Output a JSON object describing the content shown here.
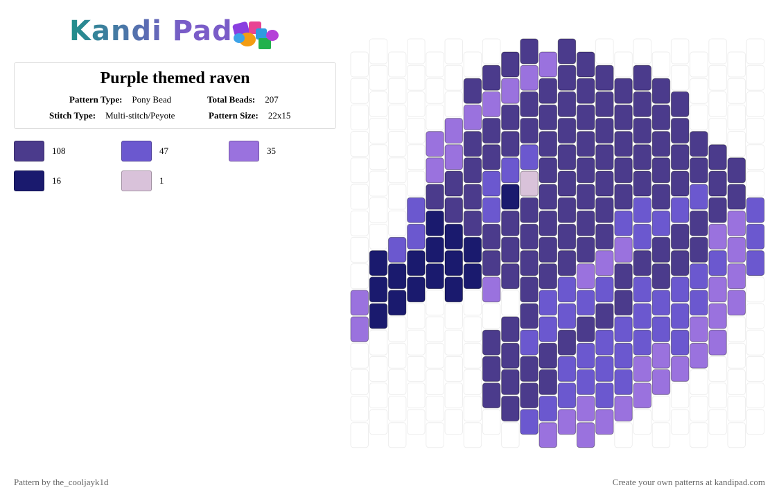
{
  "logo": "Kandi Pad",
  "pattern": {
    "title": "Purple themed raven",
    "fields": [
      {
        "label": "Pattern Type:",
        "value": "Pony Bead"
      },
      {
        "label": "Total Beads:",
        "value": "207"
      },
      {
        "label": "Stitch Type:",
        "value": "Multi-stitch/Peyote"
      },
      {
        "label": "Pattern Size:",
        "value": "22x15"
      }
    ]
  },
  "legend": [
    {
      "color": "#4b3b8c",
      "count": "108"
    },
    {
      "color": "#6b58cf",
      "count": "47"
    },
    {
      "color": "#9a72de",
      "count": "35"
    },
    {
      "color": "#1a1a6e",
      "count": "16"
    },
    {
      "color": "#d9c2da",
      "count": "1"
    }
  ],
  "footer": {
    "left": "Pattern by the_cooljayk1d",
    "right": "Create your own patterns at kandipad.com"
  }
}
